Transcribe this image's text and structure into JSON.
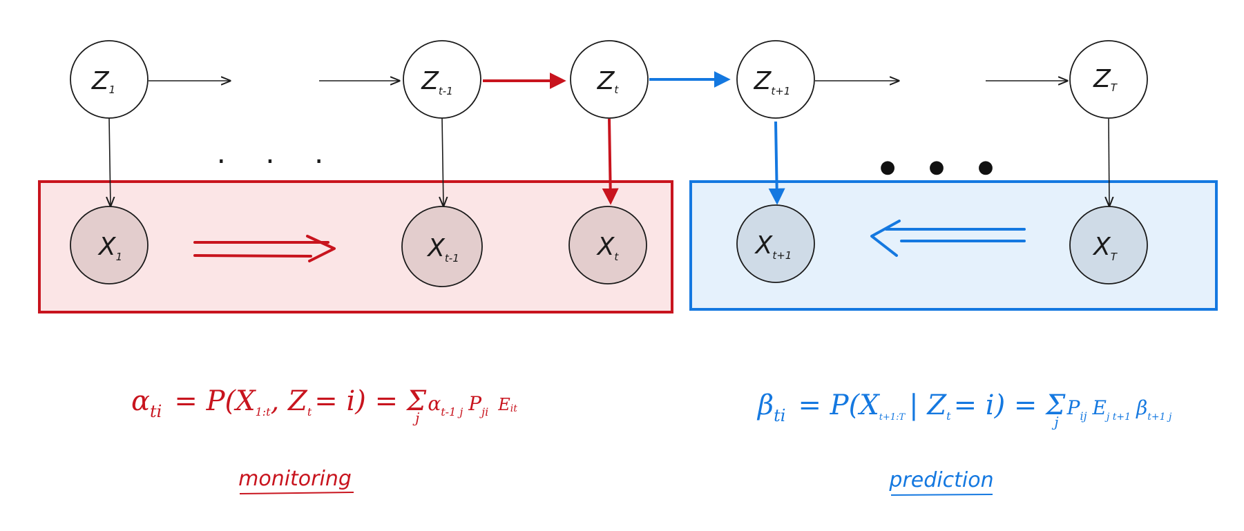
{
  "colors": {
    "forward": "#c8141e",
    "backward": "#1478e0",
    "ink": "#1a1a1a",
    "forward_panel_fill": "#fbe5e6",
    "backward_panel_fill": "#e5f1fc",
    "forward_node_fill": "#e3cdcd",
    "backward_node_fill": "#cfdbe7"
  },
  "latent_nodes": [
    {
      "main": "Z",
      "sub": "1"
    },
    {
      "main": "Z",
      "sub": "t-1"
    },
    {
      "main": "Z",
      "sub": "t"
    },
    {
      "main": "Z",
      "sub": "t+1"
    },
    {
      "main": "Z",
      "sub": "T"
    }
  ],
  "observed_nodes": [
    {
      "main": "X",
      "sub": "1"
    },
    {
      "main": "X",
      "sub": "t-1"
    },
    {
      "main": "X",
      "sub": "t"
    },
    {
      "main": "X",
      "sub": "t+1"
    },
    {
      "main": "X",
      "sub": "T"
    }
  ],
  "ellipsis": {
    "small": "· · ·",
    "large": "● ● ●"
  },
  "equations": {
    "alpha": {
      "lhs": "α",
      "lhs_sub": "ti",
      "p1": "= P(X",
      "p1_sub": "1:t",
      "p2": ", Z",
      "p2_sub": "t",
      "p3": "= i) = Σ",
      "sum_sub": "j",
      "a": "α",
      "a_sub": "t-1 j",
      "p": "P",
      "p_sub": "ji",
      "e": "E",
      "e_sub": "it"
    },
    "beta": {
      "lhs": "β",
      "lhs_sub": "ti",
      "p1": "= P(X",
      "p1_sub": "t+1:T",
      "p2": "| Z",
      "p2_sub": "t",
      "p3": "= i) = Σ",
      "sum_sub": "j",
      "p": "P",
      "p_sub": "ij",
      "e": "E",
      "e_sub": "j t+1",
      "b": "β",
      "b_sub": "t+1 j"
    }
  },
  "captions": {
    "forward": "monitoring",
    "backward": "prediction"
  }
}
